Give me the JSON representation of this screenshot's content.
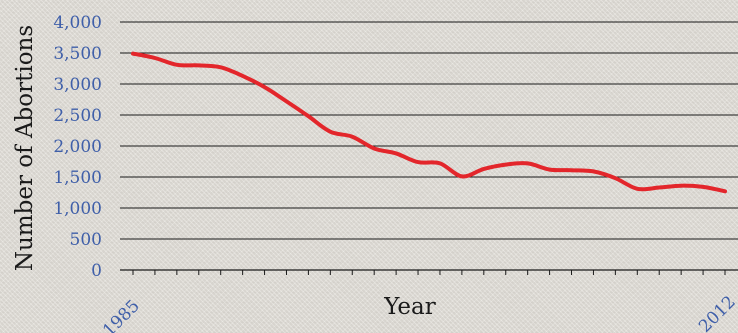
{
  "chart_data": {
    "type": "line",
    "xlabel": "Year",
    "ylabel": "Number of Abortions",
    "ylim": [
      0,
      4000
    ],
    "yticks": [
      "0",
      "500",
      "1,000",
      "1,500",
      "2,000",
      "2,500",
      "3,000",
      "3,500",
      "4,000"
    ],
    "xtick_labels": [
      "1985",
      "2012"
    ],
    "grid": true,
    "series_color": "#e3262b",
    "grid_color": "#1a1a1a",
    "tick_label_color": "#3f5fa9",
    "series": [
      {
        "x": [
          1985,
          1986,
          1987,
          1988,
          1989,
          1990,
          1991,
          1992,
          1993,
          1994,
          1995,
          1996,
          1997,
          1998,
          1999,
          2000,
          2001,
          2002,
          2003,
          2004,
          2005,
          2006,
          2007,
          2008,
          2009,
          2010,
          2011,
          2012
        ],
        "values": [
          3490,
          3420,
          3310,
          3300,
          3270,
          3130,
          2950,
          2720,
          2480,
          2230,
          2150,
          1960,
          1880,
          1740,
          1720,
          1510,
          1630,
          1700,
          1720,
          1620,
          1610,
          1590,
          1480,
          1310,
          1330,
          1360,
          1340,
          1270
        ]
      }
    ]
  }
}
